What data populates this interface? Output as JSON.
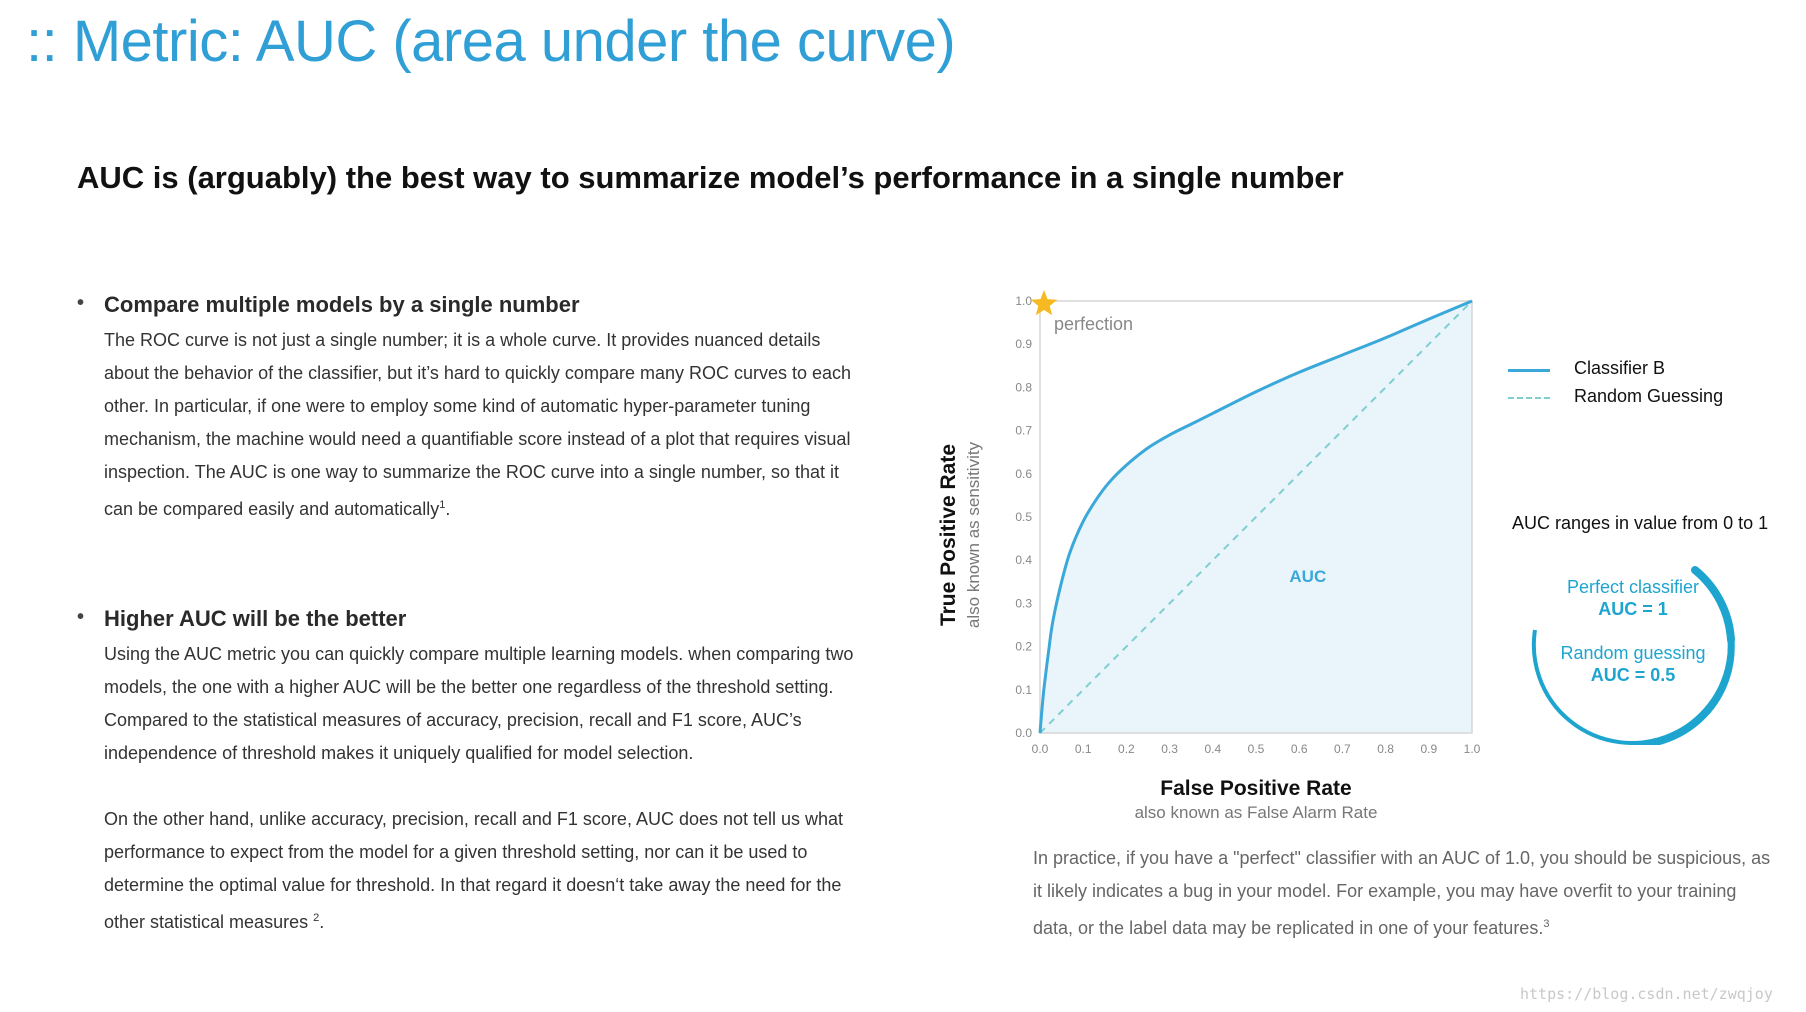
{
  "title": ":: Metric: AUC (area under the curve)",
  "subtitle": "AUC is (arguably) the best way to summarize model’s performance in a single number",
  "bullets": [
    {
      "heading": "Compare multiple models by a single number",
      "paragraphs": [
        "The ROC curve is not just a single number; it is a whole curve. It provides nuanced details about the behavior of the classifier, but it’s hard to quickly compare many ROC curves to each other. In particular, if one were to employ some kind of automatic hyper-parameter tuning mechanism, the machine would need a quantifiable score instead of a plot that requires visual inspection. The AUC is one way to summarize the ROC curve into a single number, so that it can be compared easily and automatically"
      ],
      "footnote": "1"
    },
    {
      "heading": "Higher AUC will be the better",
      "paragraphs": [
        "Using the AUC metric you can quickly compare multiple learning models. when comparing two models, the one with a higher AUC will be the better one regardless of the threshold setting. Compared to the statistical measures of accuracy, precision, recall and F1 score, AUC’s independence of threshold makes it uniquely qualified for model selection.",
        "On the other hand, unlike accuracy, precision, recall and F1 score, AUC does not tell us what performance to expect from the model for a given threshold setting, nor can it be used to determine the optimal value for threshold. In that regard it doesn‘t take away the need for the other statistical measures"
      ],
      "footnote": "2"
    }
  ],
  "chart_data": {
    "type": "line",
    "title": "",
    "xlabel": "False Positive Rate",
    "xlabel_sub": "also known as False Alarm Rate",
    "ylabel": "True Positive Rate",
    "ylabel_sub": "also known as sensitivity",
    "xlim": [
      0,
      1
    ],
    "ylim": [
      0,
      1
    ],
    "x_ticks": [
      "0.0",
      "0.1",
      "0.2",
      "0.3",
      "0.4",
      "0.5",
      "0.6",
      "0.7",
      "0.8",
      "0.9",
      "1.0"
    ],
    "y_ticks": [
      "0.0",
      "0.1",
      "0.2",
      "0.3",
      "0.4",
      "0.5",
      "0.6",
      "0.7",
      "0.8",
      "0.9",
      "1.0"
    ],
    "grid": false,
    "legend_position": "right",
    "series": [
      {
        "name": "Classifier B",
        "style": "solid",
        "color": "#3aa8d8",
        "x": [
          0,
          0.005,
          0.01,
          0.02,
          0.03,
          0.05,
          0.07,
          0.1,
          0.13,
          0.16,
          0.2,
          0.25,
          0.3,
          0.35,
          0.4,
          0.5,
          0.6,
          0.7,
          0.8,
          0.9,
          1.0
        ],
        "y": [
          0,
          0.06,
          0.11,
          0.19,
          0.26,
          0.35,
          0.42,
          0.49,
          0.54,
          0.58,
          0.62,
          0.66,
          0.69,
          0.715,
          0.74,
          0.79,
          0.835,
          0.875,
          0.915,
          0.958,
          1.0
        ]
      },
      {
        "name": "Random Guessing",
        "style": "dashed",
        "color": "#7fcfcf",
        "x": [
          0,
          1
        ],
        "y": [
          0,
          1
        ]
      }
    ],
    "area_label": "AUC",
    "annotations": [
      {
        "text": "perfection",
        "x": 0,
        "y": 1,
        "marker": "star",
        "marker_color": "#f5b921"
      }
    ],
    "fill_color": "#eaf4fb"
  },
  "side": {
    "ranges_text": "AUC ranges in value from 0 to 1",
    "perfect_label": "Perfect classifier",
    "perfect_value": "AUC = 1",
    "random_label": "Random guessing",
    "random_value": "AUC = 0.5",
    "accent_color": "#1ea5cf"
  },
  "note": {
    "text": "In practice, if you have a \"perfect\" classifier with an AUC of 1.0, you should be suspicious, as it likely indicates a bug in your model. For example, you may have overfit to your training data, or the label data may be replicated in one of your features.",
    "footnote": "3"
  },
  "watermark": "https://blog.csdn.net/zwqjoy"
}
